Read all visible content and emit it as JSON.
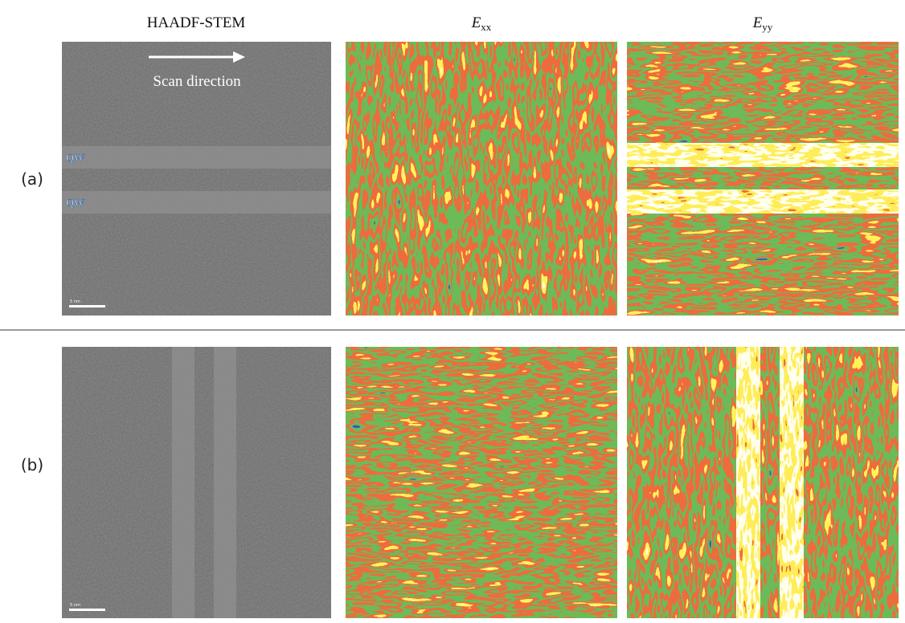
{
  "columns": [
    {
      "text": "HAADF-STEM"
    },
    {
      "symbol": "E",
      "subscript": "xx"
    },
    {
      "symbol": "E",
      "subscript": "yy"
    }
  ],
  "rows": [
    {
      "label": "(a)"
    },
    {
      "label": "(b)"
    }
  ],
  "annotations": {
    "scan_direction": "Scan direction",
    "qw_labels": [
      "QW",
      "QW"
    ],
    "scale_bars": [
      "5 nm",
      "5 nm"
    ]
  }
}
